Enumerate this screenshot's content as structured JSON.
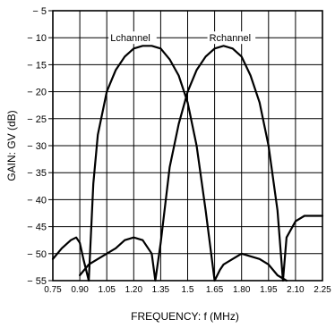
{
  "chart_data": {
    "type": "line",
    "title": "",
    "xlabel": "FREQUENCY: f (MHz)",
    "ylabel": "GAIN: GV (dB)",
    "xlim": [
      0.75,
      2.25
    ],
    "ylim": [
      -55,
      -5
    ],
    "x_ticks": [
      "0.75",
      "0.90",
      "1.05",
      "1.20",
      "1.35",
      "1.5",
      "1.65",
      "1.80",
      "1.95",
      "2.10",
      "2.25"
    ],
    "y_ticks": [
      "− 5",
      "− 10",
      "− 15",
      "− 20",
      "− 25",
      "− 30",
      "− 35",
      "− 40",
      "− 45",
      "− 50",
      "− 55"
    ],
    "grid": true,
    "series": [
      {
        "name": "Lchannel",
        "label": "Lchannel",
        "x": [
          0.75,
          0.8,
          0.85,
          0.88,
          0.9,
          0.92,
          0.95,
          0.975,
          1.0,
          1.05,
          1.1,
          1.15,
          1.2,
          1.25,
          1.3,
          1.35,
          1.4,
          1.45,
          1.5,
          1.55,
          1.6,
          1.65,
          1.68,
          1.7,
          1.75,
          1.8,
          1.85,
          1.9,
          1.95,
          2.0,
          2.05
        ],
        "y": [
          -51,
          -49,
          -47.5,
          -47,
          -48,
          -51,
          -55,
          -37,
          -28,
          -20,
          -16,
          -13.5,
          -12,
          -11.5,
          -11.5,
          -12,
          -14,
          -17,
          -22,
          -30,
          -42,
          -55,
          -53,
          -52,
          -51,
          -50,
          -50.5,
          -51,
          -52,
          -54,
          -55
        ]
      },
      {
        "name": "Rchannel",
        "label": "Rchannel",
        "x": [
          0.9,
          0.95,
          1.0,
          1.05,
          1.1,
          1.15,
          1.2,
          1.25,
          1.3,
          1.32,
          1.35,
          1.4,
          1.45,
          1.5,
          1.55,
          1.6,
          1.65,
          1.7,
          1.75,
          1.8,
          1.85,
          1.9,
          1.95,
          2.0,
          2.03,
          2.05,
          2.1,
          2.15,
          2.2,
          2.25
        ],
        "y": [
          -54,
          -52,
          -51,
          -50,
          -49,
          -47.5,
          -47,
          -47.5,
          -50,
          -55,
          -48,
          -34,
          -26,
          -20,
          -16,
          -13.5,
          -12,
          -11.5,
          -12,
          -13.5,
          -17,
          -22,
          -30,
          -42,
          -55,
          -47,
          -44,
          -43,
          -43,
          -43
        ]
      }
    ]
  }
}
